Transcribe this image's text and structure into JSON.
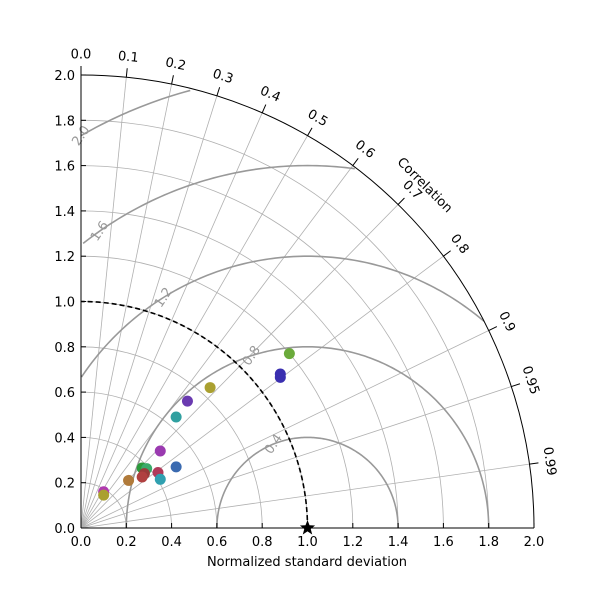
{
  "chart_data": {
    "type": "scatter",
    "subtype": "taylor-diagram",
    "xlabel": "Normalized standard deviation",
    "correlation_label": "Correlation",
    "std_range": [
      0,
      2.0
    ],
    "std_ticks": [
      "0.0",
      "0.2",
      "0.4",
      "0.6",
      "0.8",
      "1.0",
      "1.2",
      "1.4",
      "1.6",
      "1.8",
      "2.0"
    ],
    "correlation_ticks": [
      "0.0",
      "0.1",
      "0.2",
      "0.3",
      "0.4",
      "0.5",
      "0.6",
      "0.7",
      "0.8",
      "0.9",
      "0.95",
      "0.99"
    ],
    "rmsd_contours": [
      0.4,
      0.8,
      1.2,
      1.6,
      2.0
    ],
    "rmsd_labels": [
      "0.4",
      "0.8",
      "1.2",
      "1.6",
      "2.0"
    ],
    "reference_std": 1.0,
    "reference_color": "#000000",
    "reference_marker": "star",
    "grid": true,
    "points": [
      {
        "x": 0.92,
        "y": 0.77,
        "color": "#6aaa3a"
      },
      {
        "x": 0.88,
        "y": 0.68,
        "color": "#3a2fb0"
      },
      {
        "x": 0.88,
        "y": 0.665,
        "color": "#3a2fb0"
      },
      {
        "x": 0.57,
        "y": 0.62,
        "color": "#aaa030"
      },
      {
        "x": 0.47,
        "y": 0.56,
        "color": "#6a3ab0"
      },
      {
        "x": 0.42,
        "y": 0.49,
        "color": "#30a0a0"
      },
      {
        "x": 0.35,
        "y": 0.34,
        "color": "#9a3ab0"
      },
      {
        "x": 0.42,
        "y": 0.27,
        "color": "#3a6ab0"
      },
      {
        "x": 0.27,
        "y": 0.265,
        "color": "#2a9a3a"
      },
      {
        "x": 0.29,
        "y": 0.262,
        "color": "#3aaa6a"
      },
      {
        "x": 0.34,
        "y": 0.245,
        "color": "#b03a5a"
      },
      {
        "x": 0.28,
        "y": 0.24,
        "color": "#9a3a3a"
      },
      {
        "x": 0.27,
        "y": 0.225,
        "color": "#b04040"
      },
      {
        "x": 0.35,
        "y": 0.215,
        "color": "#30a0b0"
      },
      {
        "x": 0.21,
        "y": 0.21,
        "color": "#b07a3a"
      },
      {
        "x": 0.1,
        "y": 0.16,
        "color": "#b03ab0"
      },
      {
        "x": 0.1,
        "y": 0.145,
        "color": "#aaa030"
      }
    ]
  }
}
